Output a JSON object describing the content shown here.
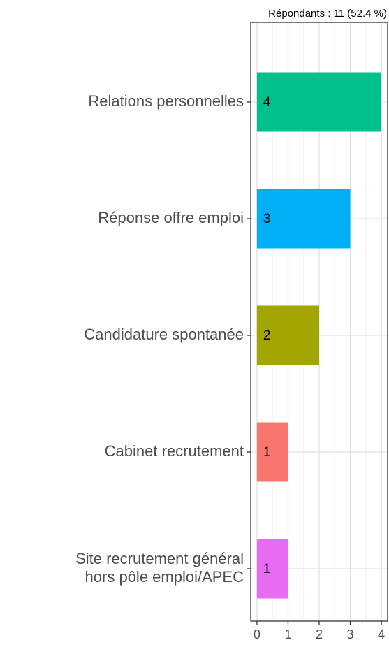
{
  "chart_data": {
    "type": "bar",
    "orientation": "horizontal",
    "subtitle": "Répondants : 11 (52.4 %)",
    "categories": [
      "Relations personnelles",
      "Réponse offre emploi",
      "Candidature spontanée",
      "Cabinet recrutement",
      [
        "Site recrutement général",
        "hors pôle emploi/APEC"
      ]
    ],
    "values": [
      4,
      3,
      2,
      1,
      1
    ],
    "colors": [
      "#00c08b",
      "#00b0f6",
      "#a3a500",
      "#f8766d",
      "#e76bf3"
    ],
    "xlim": [
      -0.2,
      4.2
    ],
    "xticks": [
      0,
      1,
      2,
      3,
      4
    ],
    "grid": true
  }
}
